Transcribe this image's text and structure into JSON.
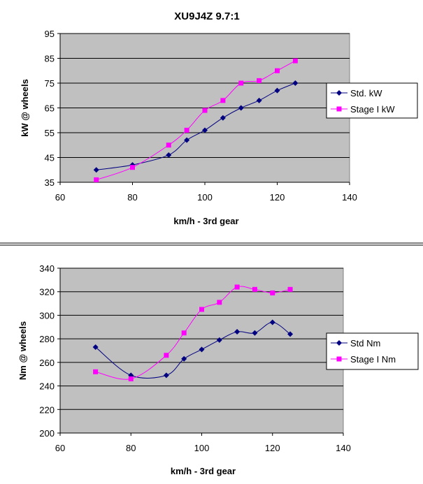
{
  "chart_data": [
    {
      "type": "line",
      "title": "XU9J4Z 9.7:1",
      "xlabel": "km/h - 3rd gear",
      "ylabel": "kW @ wheels",
      "xlim": [
        60,
        140
      ],
      "ylim": [
        35,
        95
      ],
      "xticks": [
        60,
        80,
        100,
        120,
        140
      ],
      "yticks": [
        35,
        45,
        55,
        65,
        75,
        85,
        95
      ],
      "grid": "horizontal",
      "legend": "right",
      "series": [
        {
          "name": "Std. kW",
          "color": "#000080",
          "marker": "diamond",
          "x": [
            70,
            80,
            90,
            95,
            100,
            105,
            110,
            115,
            120,
            125
          ],
          "y": [
            40,
            42,
            46,
            52,
            56,
            61,
            65,
            68,
            72,
            75
          ]
        },
        {
          "name": "Stage I kW",
          "color": "#ff00ff",
          "marker": "square",
          "x": [
            70,
            80,
            90,
            95,
            100,
            105,
            110,
            115,
            120,
            125
          ],
          "y": [
            36,
            41,
            50,
            56,
            64,
            68,
            75,
            76,
            80,
            84
          ]
        }
      ]
    },
    {
      "type": "line",
      "title": "",
      "xlabel": "km/h - 3rd gear",
      "ylabel": "Nm @ wheels",
      "xlim": [
        60,
        140
      ],
      "ylim": [
        200,
        340
      ],
      "xticks": [
        60,
        80,
        100,
        120,
        140
      ],
      "yticks": [
        200,
        220,
        240,
        260,
        280,
        300,
        320,
        340
      ],
      "grid": "horizontal",
      "legend": "right",
      "series": [
        {
          "name": "Std Nm",
          "color": "#000080",
          "marker": "diamond",
          "x": [
            70,
            80,
            90,
            95,
            100,
            105,
            110,
            115,
            120,
            125
          ],
          "y": [
            273,
            249,
            249,
            263,
            271,
            279,
            286,
            285,
            294,
            284
          ]
        },
        {
          "name": "Stage I Nm",
          "color": "#ff00ff",
          "marker": "square",
          "x": [
            70,
            80,
            90,
            95,
            100,
            105,
            110,
            115,
            120,
            125
          ],
          "y": [
            252,
            246,
            266,
            285,
            305,
            311,
            324,
            322,
            319,
            322
          ]
        }
      ]
    }
  ]
}
